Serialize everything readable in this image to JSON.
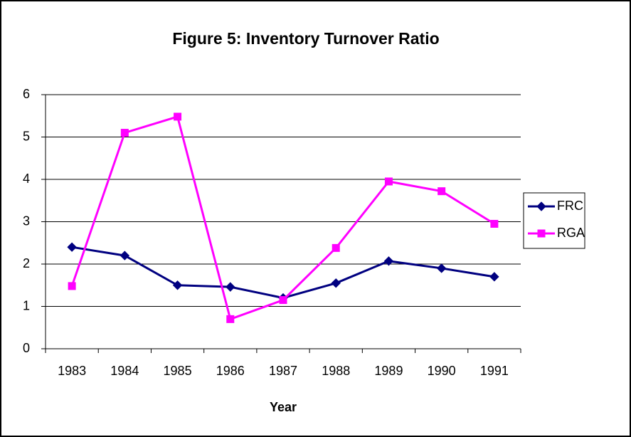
{
  "chart_data": {
    "type": "line",
    "title": "Figure 5: Inventory Turnover Ratio",
    "x_label": "Year",
    "categories": [
      "1983",
      "1984",
      "1985",
      "1986",
      "1987",
      "1988",
      "1989",
      "1990",
      "1991"
    ],
    "series": [
      {
        "name": "FRC",
        "color": "#000080",
        "marker": "diamond",
        "values": [
          2.4,
          2.2,
          1.5,
          1.46,
          1.2,
          1.55,
          2.07,
          1.9,
          1.7
        ]
      },
      {
        "name": "RGA",
        "color": "#ff00ff",
        "marker": "square",
        "values": [
          1.48,
          5.1,
          5.48,
          0.7,
          1.15,
          2.38,
          3.95,
          3.72,
          2.95
        ]
      }
    ],
    "ylim": [
      0,
      6
    ],
    "yticks": [
      0,
      1,
      2,
      3,
      4,
      5,
      6
    ],
    "grid": true,
    "legend": "right"
  }
}
